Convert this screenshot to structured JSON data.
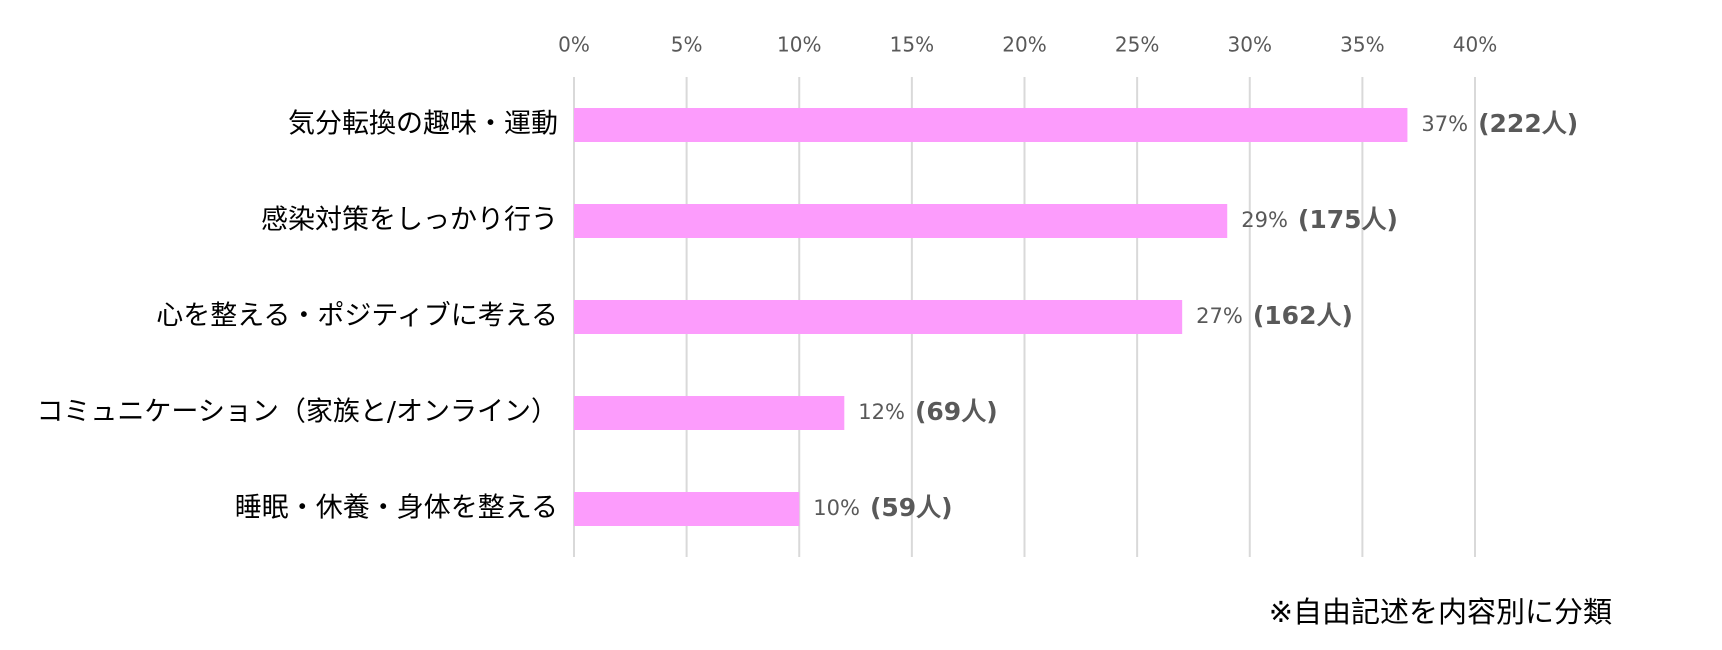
{
  "chart_data": {
    "type": "bar",
    "orientation": "horizontal",
    "categories": [
      "気分転換の趣味・運動",
      "感染対策をしっかり行う",
      "心を整える・ポジティブに考える",
      "コミュニケーション（家族と/オンライン）",
      "睡眠・休養・身体を整える"
    ],
    "values": [
      37,
      29,
      27,
      12,
      10
    ],
    "value_labels": [
      "37%",
      "29%",
      "27%",
      "12%",
      "10%"
    ],
    "counts": [
      222,
      175,
      162,
      69,
      59
    ],
    "count_labels": [
      "(222人)",
      "(175人)",
      "(162人)",
      "(69人)",
      "(59人)"
    ],
    "color": "#fc9cfc",
    "xlim": [
      0,
      40
    ],
    "xticks": [
      {
        "value": 0,
        "label": "0%"
      },
      {
        "value": 5,
        "label": "5%"
      },
      {
        "value": 10,
        "label": "10%"
      },
      {
        "value": 15,
        "label": "15%"
      },
      {
        "value": 20,
        "label": "20%"
      },
      {
        "value": 25,
        "label": "25%"
      },
      {
        "value": 30,
        "label": "30%"
      },
      {
        "value": 35,
        "label": "35%"
      },
      {
        "value": 40,
        "label": "40%"
      }
    ],
    "grid": true,
    "note": "※自由記述を内容別に分類"
  }
}
